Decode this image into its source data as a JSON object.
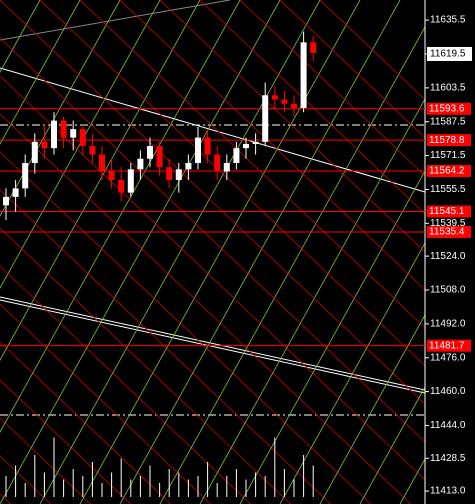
{
  "chart_data": {
    "type": "candlestick",
    "open": [
      11548,
      11552,
      11556,
      11568,
      11578,
      11575,
      11588,
      11580,
      11584,
      11576,
      11572,
      11564,
      11560,
      11554,
      11565,
      11570,
      11576,
      11566,
      11560,
      11565,
      11568,
      11580,
      11572,
      11564,
      11568,
      11575,
      11577,
      11578,
      11600,
      11598,
      11596,
      11594,
      11625
    ],
    "high": [
      11556,
      11560,
      11572,
      11582,
      11586,
      11592,
      11590,
      11588,
      11586,
      11582,
      11576,
      11570,
      11566,
      11568,
      11574,
      11580,
      11578,
      11570,
      11568,
      11572,
      11585,
      11584,
      11576,
      11572,
      11578,
      11580,
      11582,
      11606,
      11604,
      11602,
      11600,
      11630,
      11628
    ],
    "low": [
      11541,
      11545,
      11552,
      11563,
      11570,
      11572,
      11575,
      11574,
      11572,
      11568,
      11560,
      11556,
      11550,
      11552,
      11560,
      11566,
      11562,
      11556,
      11554,
      11560,
      11565,
      11568,
      11560,
      11560,
      11565,
      11570,
      11572,
      11576,
      11594,
      11592,
      11590,
      11592,
      11616
    ],
    "close": [
      11552,
      11556,
      11568,
      11578,
      11575,
      11588,
      11580,
      11584,
      11576,
      11572,
      11564,
      11560,
      11554,
      11565,
      11570,
      11576,
      11566,
      11560,
      11565,
      11568,
      11580,
      11572,
      11564,
      11568,
      11575,
      11577,
      11578,
      11600,
      11598,
      11596,
      11594,
      11625,
      11620
    ],
    "up_color": "#ffffff",
    "down_color": "#ff0000",
    "volume": [
      30,
      45,
      20,
      60,
      35,
      85,
      25,
      40,
      30,
      50,
      20,
      35,
      55,
      25,
      30,
      45,
      20,
      40,
      35,
      25,
      30,
      50,
      20,
      30,
      40,
      25,
      35,
      30,
      85,
      40,
      25,
      60,
      45
    ],
    "volume_lim": [
      0,
      100
    ],
    "ylim": [
      11406.9,
      11645.0
    ],
    "yticks": [
      11635.5,
      11619.5,
      11603.5,
      11587.5,
      11571.5,
      11555.5,
      11539.5,
      {
        "value": 11524,
        "label": "11524.0"
      },
      {
        "value": 11508,
        "label": "11508.0"
      },
      {
        "value": 11492,
        "label": "11492.0"
      },
      {
        "value": 11476,
        "label": "11476.0"
      },
      {
        "value": 11460,
        "label": "11460.0"
      },
      {
        "value": 11444,
        "label": "11444.0"
      },
      11428.5,
      {
        "value": 11413,
        "label": "11413.0"
      }
    ],
    "levels": [
      11593.6,
      11578.8,
      11564.2,
      11545.1,
      11535.4,
      11481.7
    ],
    "level_color": "#ff0000",
    "last_price": 11619.5
  }
}
